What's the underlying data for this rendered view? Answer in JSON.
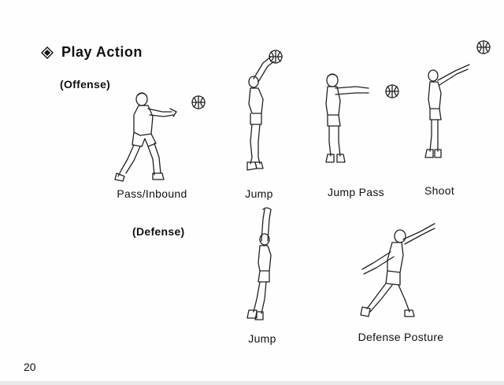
{
  "heading": {
    "icon": "diamond-bullet-icon",
    "title": "Play Action"
  },
  "sections": {
    "offense_label": "(Offense)",
    "defense_label": "(Defense)"
  },
  "offense_figures": [
    {
      "caption": "Pass/Inbound",
      "icon": "pass-inbound-figure"
    },
    {
      "caption": "Jump",
      "icon": "jump-figure"
    },
    {
      "caption": "Jump Pass",
      "icon": "jump-pass-figure"
    },
    {
      "caption": "Shoot",
      "icon": "shoot-figure"
    }
  ],
  "defense_figures": [
    {
      "caption": "Jump",
      "icon": "defense-jump-figure"
    },
    {
      "caption": "Defense Posture",
      "icon": "defense-posture-figure"
    }
  ],
  "footer": {
    "page_number": "20"
  }
}
